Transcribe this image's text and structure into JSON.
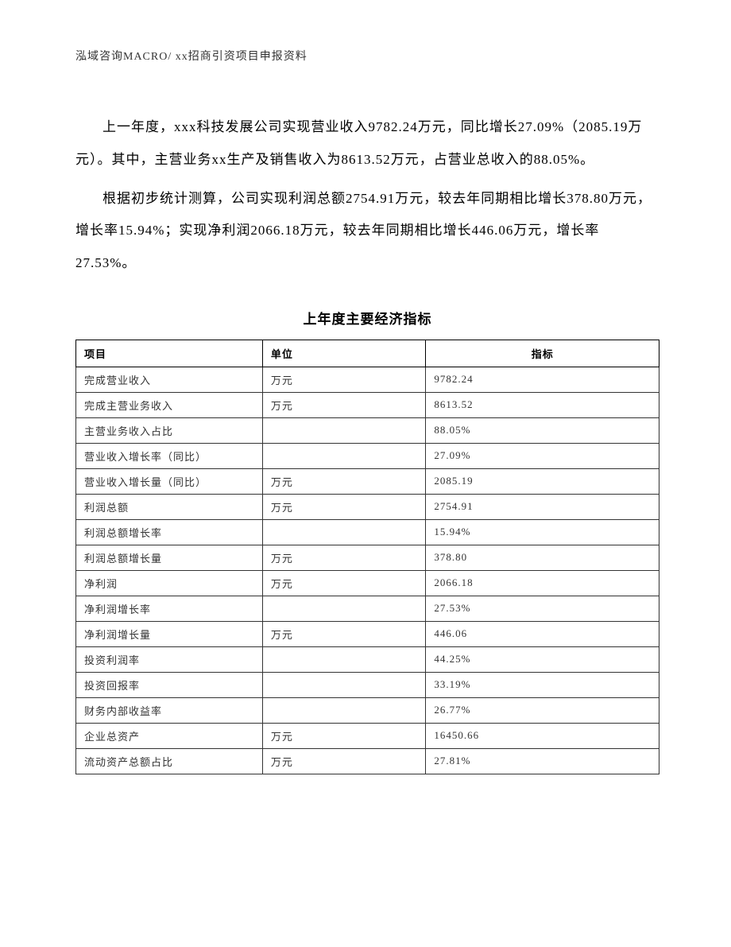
{
  "header": {
    "text": "泓域咨询MACRO/   xx招商引资项目申报资料"
  },
  "paragraphs": {
    "p1": "上一年度，xxx科技发展公司实现营业收入9782.24万元，同比增长27.09%（2085.19万元）。其中，主营业务xx生产及销售收入为8613.52万元，占营业总收入的88.05%。",
    "p2": "根据初步统计测算，公司实现利润总额2754.91万元，较去年同期相比增长378.80万元，增长率15.94%；实现净利润2066.18万元，较去年同期相比增长446.06万元，增长率27.53%。"
  },
  "table": {
    "title": "上年度主要经济指标",
    "columns": {
      "item": "项目",
      "unit": "单位",
      "indicator": "指标"
    },
    "rows": [
      {
        "item": "完成营业收入",
        "unit": "万元",
        "value": "9782.24"
      },
      {
        "item": "完成主营业务收入",
        "unit": "万元",
        "value": "8613.52"
      },
      {
        "item": "主营业务收入占比",
        "unit": "",
        "value": "88.05%"
      },
      {
        "item": "营业收入增长率（同比）",
        "unit": "",
        "value": "27.09%"
      },
      {
        "item": "营业收入增长量（同比）",
        "unit": "万元",
        "value": "2085.19"
      },
      {
        "item": "利润总额",
        "unit": "万元",
        "value": "2754.91"
      },
      {
        "item": "利润总额增长率",
        "unit": "",
        "value": "15.94%"
      },
      {
        "item": "利润总额增长量",
        "unit": "万元",
        "value": "378.80"
      },
      {
        "item": "净利润",
        "unit": "万元",
        "value": "2066.18"
      },
      {
        "item": "净利润增长率",
        "unit": "",
        "value": "27.53%"
      },
      {
        "item": "净利润增长量",
        "unit": "万元",
        "value": "446.06"
      },
      {
        "item": "投资利润率",
        "unit": "",
        "value": "44.25%"
      },
      {
        "item": "投资回报率",
        "unit": "",
        "value": "33.19%"
      },
      {
        "item": "财务内部收益率",
        "unit": "",
        "value": "26.77%"
      },
      {
        "item": "企业总资产",
        "unit": "万元",
        "value": "16450.66"
      },
      {
        "item": "流动资产总额占比",
        "unit": "万元",
        "value": "27.81%"
      }
    ]
  }
}
